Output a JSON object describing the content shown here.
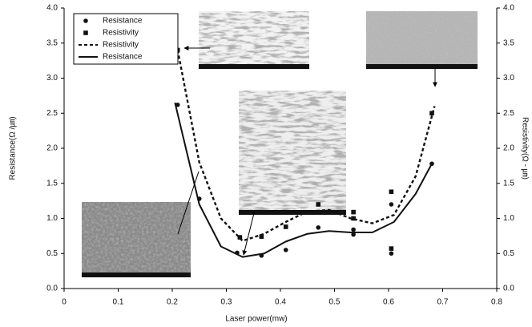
{
  "chart_data": {
    "type": "scatter",
    "x_label": "Laser power(mw)",
    "y_label": "Resistance(Ω /㎛)",
    "y2_label": "Resistivity(Ω - ㎛)",
    "xlim": [
      0,
      0.8
    ],
    "xticks": [
      0,
      0.1,
      0.2,
      0.3,
      0.4,
      0.5,
      0.6,
      0.7,
      0.8
    ],
    "ylim": [
      0,
      4
    ],
    "yticks": [
      {
        "value": 0,
        "label": "0.0"
      },
      0.5,
      {
        "value": 1,
        "label": "1.0"
      },
      1.5,
      {
        "value": 2,
        "label": "2.0"
      },
      2.5,
      {
        "value": 3,
        "label": "3.0"
      },
      3.5,
      {
        "value": 4,
        "label": "4.0"
      }
    ],
    "y2lim": [
      0,
      4
    ],
    "y2ticks": [
      {
        "value": 0,
        "label": "0.0"
      },
      0.5,
      {
        "value": 1,
        "label": "1.0"
      },
      1.5,
      {
        "value": 2,
        "label": "2.0"
      },
      2.5,
      {
        "value": 3,
        "label": "3.0"
      },
      3.5,
      {
        "value": 4,
        "label": "4.0"
      }
    ],
    "series": [
      {
        "name": "Resistance",
        "style": "circle",
        "color": "#111111",
        "x": [
          0.21,
          0.25,
          0.32,
          0.365,
          0.41,
          0.47,
          0.535,
          0.535,
          0.605,
          0.605,
          0.68
        ],
        "values": [
          2.62,
          1.28,
          0.51,
          0.47,
          0.55,
          0.87,
          0.77,
          0.84,
          0.5,
          1.2,
          1.78
        ]
      },
      {
        "name": "Resistivity",
        "style": "square",
        "color": "#111111",
        "axis": "y2",
        "x": [
          0.21,
          0.325,
          0.365,
          0.41,
          0.47,
          0.535,
          0.535,
          0.605,
          0.605,
          0.68
        ],
        "values": [
          3.4,
          0.73,
          0.74,
          0.88,
          1.2,
          1.09,
          1.0,
          1.38,
          0.57,
          2.5
        ]
      },
      {
        "name": "Resistivity",
        "style": "dashed",
        "color": "#111111",
        "axis": "y2",
        "x": [
          0.21,
          0.25,
          0.29,
          0.33,
          0.37,
          0.41,
          0.45,
          0.49,
          0.53,
          0.57,
          0.61,
          0.65,
          0.685
        ],
        "values": [
          3.4,
          1.8,
          1.0,
          0.68,
          0.78,
          0.95,
          1.1,
          1.12,
          1.0,
          0.93,
          1.05,
          1.6,
          2.6
        ]
      },
      {
        "name": "Resistance",
        "style": "solid",
        "color": "#111111",
        "x": [
          0.205,
          0.25,
          0.29,
          0.33,
          0.37,
          0.41,
          0.45,
          0.49,
          0.53,
          0.57,
          0.61,
          0.65,
          0.68
        ],
        "values": [
          2.65,
          1.2,
          0.6,
          0.45,
          0.5,
          0.67,
          0.78,
          0.82,
          0.8,
          0.8,
          0.95,
          1.35,
          1.78
        ]
      }
    ]
  }
}
